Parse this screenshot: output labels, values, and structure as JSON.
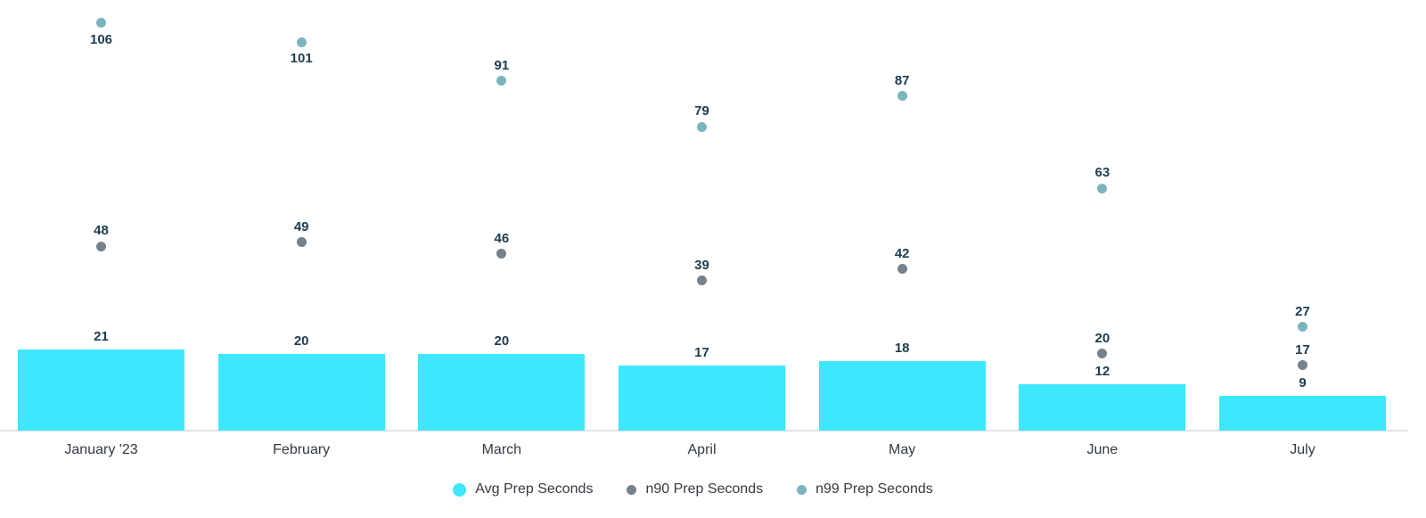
{
  "chart_data": {
    "type": "bar",
    "combo": "bars with scatter point overlays",
    "categories": [
      "January '23",
      "February",
      "March",
      "April",
      "May",
      "June",
      "July"
    ],
    "series": [
      {
        "name": "Avg Prep Seconds",
        "render": "bar",
        "color": "#3de8fc",
        "values": [
          21,
          20,
          20,
          17,
          18,
          12,
          9
        ]
      },
      {
        "name": "n90 Prep Seconds",
        "render": "scatter",
        "color": "#75818c",
        "values": [
          48,
          49,
          46,
          39,
          42,
          20,
          17
        ]
      },
      {
        "name": "n99 Prep Seconds",
        "render": "scatter",
        "color": "#7cb4be",
        "values": [
          106,
          101,
          91,
          79,
          87,
          63,
          27
        ]
      }
    ],
    "title": "",
    "xlabel": "",
    "ylabel": "",
    "ylim": [
      0,
      112
    ],
    "grid": false,
    "y_axis_ticks_visible": false,
    "legend_position": "bottom-center",
    "value_labels_shown": true,
    "colors": {
      "value_label": "#1e3c4f",
      "axis_label": "#333b43",
      "axis_line": "#e0e3ea",
      "background": "#ffffff"
    }
  }
}
